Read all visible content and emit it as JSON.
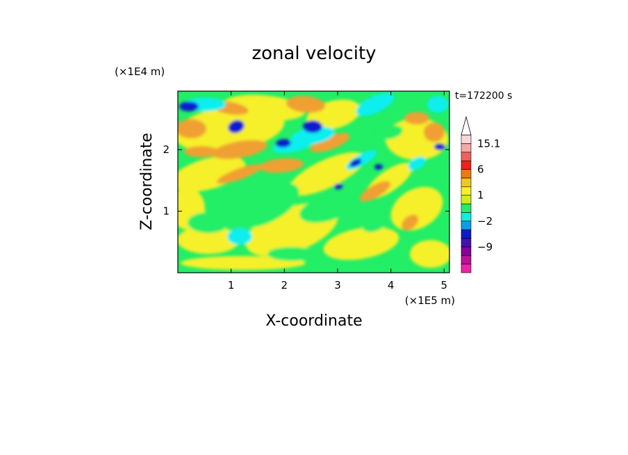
{
  "chart_data": {
    "type": "heatmap",
    "title": "zonal velocity",
    "xlabel": "X-coordinate",
    "ylabel": "Z-coordinate",
    "x_unit": "(×1E5 m)",
    "y_unit": "(×1E4 m)",
    "time_label": "t=172200 s",
    "xlim": [
      0,
      5.1
    ],
    "ylim": [
      0,
      2.95
    ],
    "x_ticks": [
      1,
      2,
      3,
      4,
      5
    ],
    "y_ticks": [
      1,
      2
    ],
    "colorbar": {
      "tick_labels": [
        {
          "value": 15.1,
          "text": "15.1"
        },
        {
          "value": 6,
          "text": "6"
        },
        {
          "value": 1,
          "text": "1"
        },
        {
          "value": -2,
          "text": "−2"
        },
        {
          "value": -9,
          "text": "−9"
        }
      ],
      "levels": [
        -15,
        -12,
        -9,
        -6,
        -3,
        -2,
        -1,
        0,
        1,
        2,
        3,
        6,
        9,
        12,
        15.1
      ],
      "colors": [
        "#ee22aa",
        "#bb1199",
        "#880099",
        "#4411aa",
        "#0a1ad0",
        "#0a9ee6",
        "#11eedd",
        "#22ee66",
        "#ccf011",
        "#f6f02a",
        "#f0c822",
        "#f07a10",
        "#ee2218",
        "#f06060",
        "#f4a8a8",
        "#fbd6d6"
      ],
      "extend_top": true
    },
    "dominant_colors": {
      "background": "#22ee66",
      "yellow": "#f6f02a",
      "orange": "#f0a030",
      "cyan": "#11eeee",
      "blue": "#0a1ad0"
    }
  }
}
